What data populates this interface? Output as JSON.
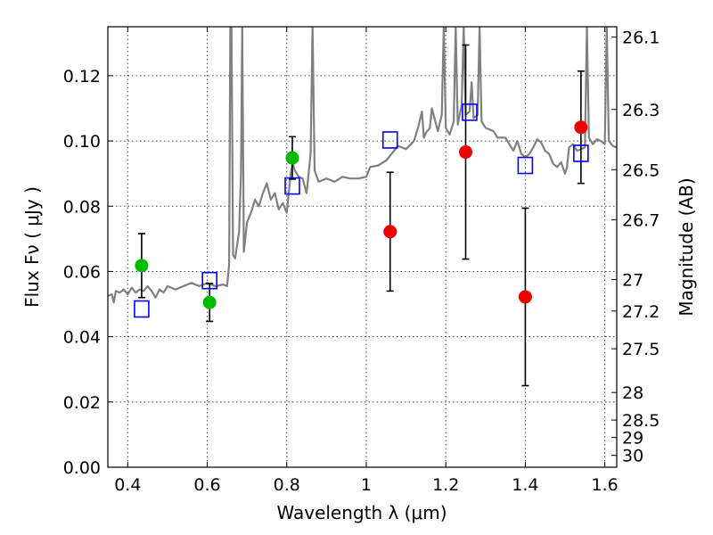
{
  "chart_data": {
    "type": "scatter",
    "xlabel": "Wavelength  λ (μm)",
    "ylabel": "Flux  Fν  ( μJy )",
    "y2label": "Magnitude (AB)",
    "xlim": [
      0.35,
      1.63
    ],
    "ylim": [
      0.0,
      0.135
    ],
    "grid": true,
    "x_ticks": [
      {
        "value": 0.4,
        "label": "0.4"
      },
      {
        "value": 0.6,
        "label": "0.6"
      },
      {
        "value": 0.8,
        "label": "0.8"
      },
      {
        "value": 1.0,
        "label": "1"
      },
      {
        "value": 1.2,
        "label": "1.2"
      },
      {
        "value": 1.4,
        "label": "1.4"
      },
      {
        "value": 1.6,
        "label": "1.6"
      }
    ],
    "y_ticks": [
      {
        "value": 0.0,
        "label": "0.00"
      },
      {
        "value": 0.02,
        "label": "0.02"
      },
      {
        "value": 0.04,
        "label": "0.04"
      },
      {
        "value": 0.06,
        "label": "0.06"
      },
      {
        "value": 0.08,
        "label": "0.08"
      },
      {
        "value": 0.1,
        "label": "0.10"
      },
      {
        "value": 0.12,
        "label": "0.12"
      }
    ],
    "y2_ticks": [
      {
        "value": 26.1,
        "label": "26.1"
      },
      {
        "value": 26.3,
        "label": "26.3"
      },
      {
        "value": 26.5,
        "label": "26.5"
      },
      {
        "value": 26.7,
        "label": "26.7"
      },
      {
        "value": 27.0,
        "label": "27"
      },
      {
        "value": 27.2,
        "label": "27.2"
      },
      {
        "value": 27.5,
        "label": "27.5"
      },
      {
        "value": 28.0,
        "label": "28"
      },
      {
        "value": 28.5,
        "label": "28.5"
      },
      {
        "value": 29.0,
        "label": "29"
      },
      {
        "value": 30.0,
        "label": "30"
      }
    ],
    "series": [
      {
        "kind": "model-spectrum",
        "color": "#808080",
        "points": [
          [
            0.35,
            0.0525
          ],
          [
            0.36,
            0.053
          ],
          [
            0.365,
            0.0505
          ],
          [
            0.37,
            0.054
          ],
          [
            0.38,
            0.0535
          ],
          [
            0.39,
            0.0545
          ],
          [
            0.4,
            0.053
          ],
          [
            0.41,
            0.055
          ],
          [
            0.42,
            0.0535
          ],
          [
            0.43,
            0.0545
          ],
          [
            0.44,
            0.054
          ],
          [
            0.45,
            0.0555
          ],
          [
            0.46,
            0.054
          ],
          [
            0.47,
            0.052
          ],
          [
            0.48,
            0.0545
          ],
          [
            0.49,
            0.0535
          ],
          [
            0.5,
            0.0555
          ],
          [
            0.52,
            0.0545
          ],
          [
            0.54,
            0.0555
          ],
          [
            0.56,
            0.0565
          ],
          [
            0.58,
            0.0555
          ],
          [
            0.6,
            0.0565
          ],
          [
            0.62,
            0.0555
          ],
          [
            0.64,
            0.056
          ],
          [
            0.65,
            0.0555
          ],
          [
            0.655,
            0.062
          ],
          [
            0.658,
            0.135
          ],
          [
            0.661,
            0.135
          ],
          [
            0.665,
            0.065
          ],
          [
            0.67,
            0.064
          ],
          [
            0.675,
            0.068
          ],
          [
            0.68,
            0.072
          ],
          [
            0.685,
            0.09
          ],
          [
            0.688,
            0.135
          ],
          [
            0.692,
            0.066
          ],
          [
            0.7,
            0.075
          ],
          [
            0.71,
            0.078
          ],
          [
            0.72,
            0.082
          ],
          [
            0.73,
            0.08
          ],
          [
            0.74,
            0.084
          ],
          [
            0.75,
            0.087
          ],
          [
            0.76,
            0.082
          ],
          [
            0.77,
            0.084
          ],
          [
            0.78,
            0.079
          ],
          [
            0.79,
            0.081
          ],
          [
            0.8,
            0.078
          ],
          [
            0.81,
            0.09
          ],
          [
            0.815,
            0.0935
          ],
          [
            0.82,
            0.091
          ],
          [
            0.83,
            0.089
          ],
          [
            0.84,
            0.0885
          ],
          [
            0.85,
            0.084
          ],
          [
            0.86,
            0.096
          ],
          [
            0.865,
            0.135
          ],
          [
            0.87,
            0.091
          ],
          [
            0.88,
            0.0875
          ],
          [
            0.9,
            0.0885
          ],
          [
            0.92,
            0.0875
          ],
          [
            0.94,
            0.089
          ],
          [
            0.96,
            0.0885
          ],
          [
            0.98,
            0.0885
          ],
          [
            1.0,
            0.089
          ],
          [
            1.01,
            0.092
          ],
          [
            1.03,
            0.0925
          ],
          [
            1.05,
            0.094
          ],
          [
            1.08,
            0.0985
          ],
          [
            1.1,
            0.0975
          ],
          [
            1.12,
            0.1
          ],
          [
            1.13,
            0.104
          ],
          [
            1.14,
            0.109
          ],
          [
            1.145,
            0.101
          ],
          [
            1.15,
            0.1025
          ],
          [
            1.16,
            0.104
          ],
          [
            1.165,
            0.11
          ],
          [
            1.18,
            0.103
          ],
          [
            1.19,
            0.108
          ],
          [
            1.195,
            0.135
          ],
          [
            1.2,
            0.104
          ],
          [
            1.21,
            0.102
          ],
          [
            1.22,
            0.106
          ],
          [
            1.225,
            0.135
          ],
          [
            1.23,
            0.105
          ],
          [
            1.24,
            0.111
          ],
          [
            1.245,
            0.135
          ],
          [
            1.25,
            0.108
          ],
          [
            1.26,
            0.109
          ],
          [
            1.265,
            0.118
          ],
          [
            1.27,
            0.107
          ],
          [
            1.28,
            0.108
          ],
          [
            1.285,
            0.135
          ],
          [
            1.29,
            0.106
          ],
          [
            1.3,
            0.104
          ],
          [
            1.32,
            0.103
          ],
          [
            1.33,
            0.101
          ],
          [
            1.35,
            0.101
          ],
          [
            1.37,
            0.097
          ],
          [
            1.38,
            0.1
          ],
          [
            1.39,
            0.096
          ],
          [
            1.4,
            0.095
          ],
          [
            1.41,
            0.096
          ],
          [
            1.42,
            0.098
          ],
          [
            1.43,
            0.1005
          ],
          [
            1.44,
            0.0995
          ],
          [
            1.45,
            0.097
          ],
          [
            1.46,
            0.096
          ],
          [
            1.47,
            0.093
          ],
          [
            1.48,
            0.092
          ],
          [
            1.49,
            0.0935
          ],
          [
            1.5,
            0.09
          ],
          [
            1.505,
            0.092
          ],
          [
            1.51,
            0.098
          ],
          [
            1.52,
            0.099
          ],
          [
            1.53,
            0.097
          ],
          [
            1.55,
            0.098
          ],
          [
            1.555,
            0.135
          ],
          [
            1.56,
            0.101
          ],
          [
            1.57,
            0.099
          ],
          [
            1.58,
            0.1005
          ],
          [
            1.59,
            0.1
          ],
          [
            1.6,
            0.099
          ],
          [
            1.605,
            0.135
          ],
          [
            1.61,
            0.1
          ],
          [
            1.62,
            0.0985
          ],
          [
            1.63,
            0.098
          ]
        ]
      },
      {
        "kind": "model-photometry",
        "marker": "open-square",
        "color": "#0000ff",
        "points": [
          {
            "x": 0.435,
            "y": 0.0485
          },
          {
            "x": 0.606,
            "y": 0.0572
          },
          {
            "x": 0.814,
            "y": 0.0862
          },
          {
            "x": 1.06,
            "y": 0.1003
          },
          {
            "x": 1.26,
            "y": 0.1088
          },
          {
            "x": 1.4,
            "y": 0.0925
          },
          {
            "x": 1.54,
            "y": 0.0962
          }
        ]
      },
      {
        "kind": "observed-optical",
        "marker": "filled-circle",
        "color": "#00bb00",
        "points": [
          {
            "x": 0.435,
            "y": 0.0618,
            "err": 0.0098
          },
          {
            "x": 0.606,
            "y": 0.0505,
            "err": 0.0058
          },
          {
            "x": 0.814,
            "y": 0.0948,
            "err": 0.0065
          }
        ]
      },
      {
        "kind": "observed-infrared",
        "marker": "filled-circle",
        "color": "#ee0000",
        "points": [
          {
            "x": 1.06,
            "y": 0.0722,
            "err": 0.0182
          },
          {
            "x": 1.25,
            "y": 0.0966,
            "err": 0.0328
          },
          {
            "x": 1.4,
            "y": 0.0522,
            "err": 0.0272
          },
          {
            "x": 1.54,
            "y": 0.1042,
            "err": 0.0172
          }
        ]
      }
    ]
  }
}
